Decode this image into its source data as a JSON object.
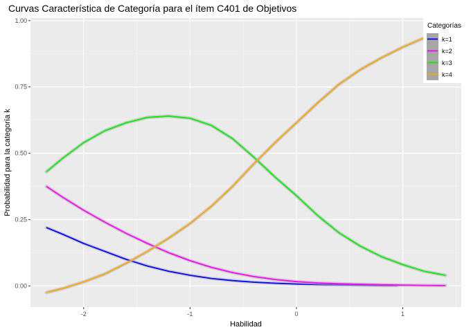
{
  "chart_data": {
    "type": "line",
    "title": "Curvas Característica de Categoría para el ítem C401 de Objetivos",
    "xlabel": "Habilidad",
    "ylabel": "Probabilidad para la categoría k",
    "xlim": [
      -2.5,
      1.55
    ],
    "ylim": [
      -0.08,
      1.01
    ],
    "xticks": [
      -2,
      -1,
      0,
      1
    ],
    "xtick_labels": [
      "-2",
      "-1",
      "0",
      "1"
    ],
    "yticks": [
      0,
      0.25,
      0.5,
      0.75,
      1.0
    ],
    "ytick_labels": [
      "0.00",
      "0.25",
      "0.50",
      "0.75",
      "1.00"
    ],
    "grid": true,
    "legend": {
      "title": "Categorías",
      "position": "top-right"
    },
    "series": [
      {
        "name": "k=1",
        "color": "#0000ff",
        "x": [
          -2.35,
          -2.2,
          -2.0,
          -1.8,
          -1.6,
          -1.4,
          -1.2,
          -1.0,
          -0.8,
          -0.6,
          -0.4,
          -0.2,
          0.0,
          0.2,
          0.4,
          0.6,
          0.8,
          0.95
        ],
        "y": [
          0.22,
          0.195,
          0.16,
          0.13,
          0.1,
          0.075,
          0.055,
          0.04,
          0.028,
          0.02,
          0.014,
          0.01,
          0.007,
          0.005,
          0.004,
          0.003,
          0.002,
          0.002
        ]
      },
      {
        "name": "k=2",
        "color": "#ff00ff",
        "x": [
          -2.35,
          -2.2,
          -2.0,
          -1.8,
          -1.6,
          -1.4,
          -1.2,
          -1.0,
          -0.8,
          -0.6,
          -0.4,
          -0.2,
          0.0,
          0.2,
          0.4,
          0.6,
          0.8,
          1.0,
          1.2,
          1.4
        ],
        "y": [
          0.375,
          0.335,
          0.285,
          0.24,
          0.198,
          0.16,
          0.125,
          0.095,
          0.07,
          0.05,
          0.035,
          0.024,
          0.016,
          0.011,
          0.008,
          0.006,
          0.004,
          0.003,
          0.002,
          0.001
        ]
      },
      {
        "name": "k=3",
        "color": "#00ee00",
        "x": [
          -2.35,
          -2.2,
          -2.0,
          -1.8,
          -1.6,
          -1.4,
          -1.2,
          -1.0,
          -0.8,
          -0.6,
          -0.4,
          -0.2,
          0.0,
          0.2,
          0.4,
          0.6,
          0.8,
          1.0,
          1.2,
          1.4
        ],
        "y": [
          0.43,
          0.48,
          0.54,
          0.585,
          0.615,
          0.635,
          0.64,
          0.632,
          0.605,
          0.555,
          0.485,
          0.41,
          0.34,
          0.265,
          0.2,
          0.15,
          0.11,
          0.08,
          0.055,
          0.04
        ]
      },
      {
        "name": "k=4",
        "color": "#ffa500",
        "x": [
          -2.35,
          -2.2,
          -2.0,
          -1.8,
          -1.6,
          -1.4,
          -1.2,
          -1.0,
          -0.8,
          -0.6,
          -0.4,
          -0.2,
          0.0,
          0.2,
          0.4,
          0.6,
          0.8,
          1.0,
          1.2,
          1.4
        ],
        "y": [
          -0.025,
          -0.01,
          0.015,
          0.045,
          0.085,
          0.13,
          0.18,
          0.235,
          0.3,
          0.375,
          0.46,
          0.54,
          0.615,
          0.69,
          0.76,
          0.815,
          0.86,
          0.9,
          0.935,
          0.955
        ]
      }
    ]
  }
}
